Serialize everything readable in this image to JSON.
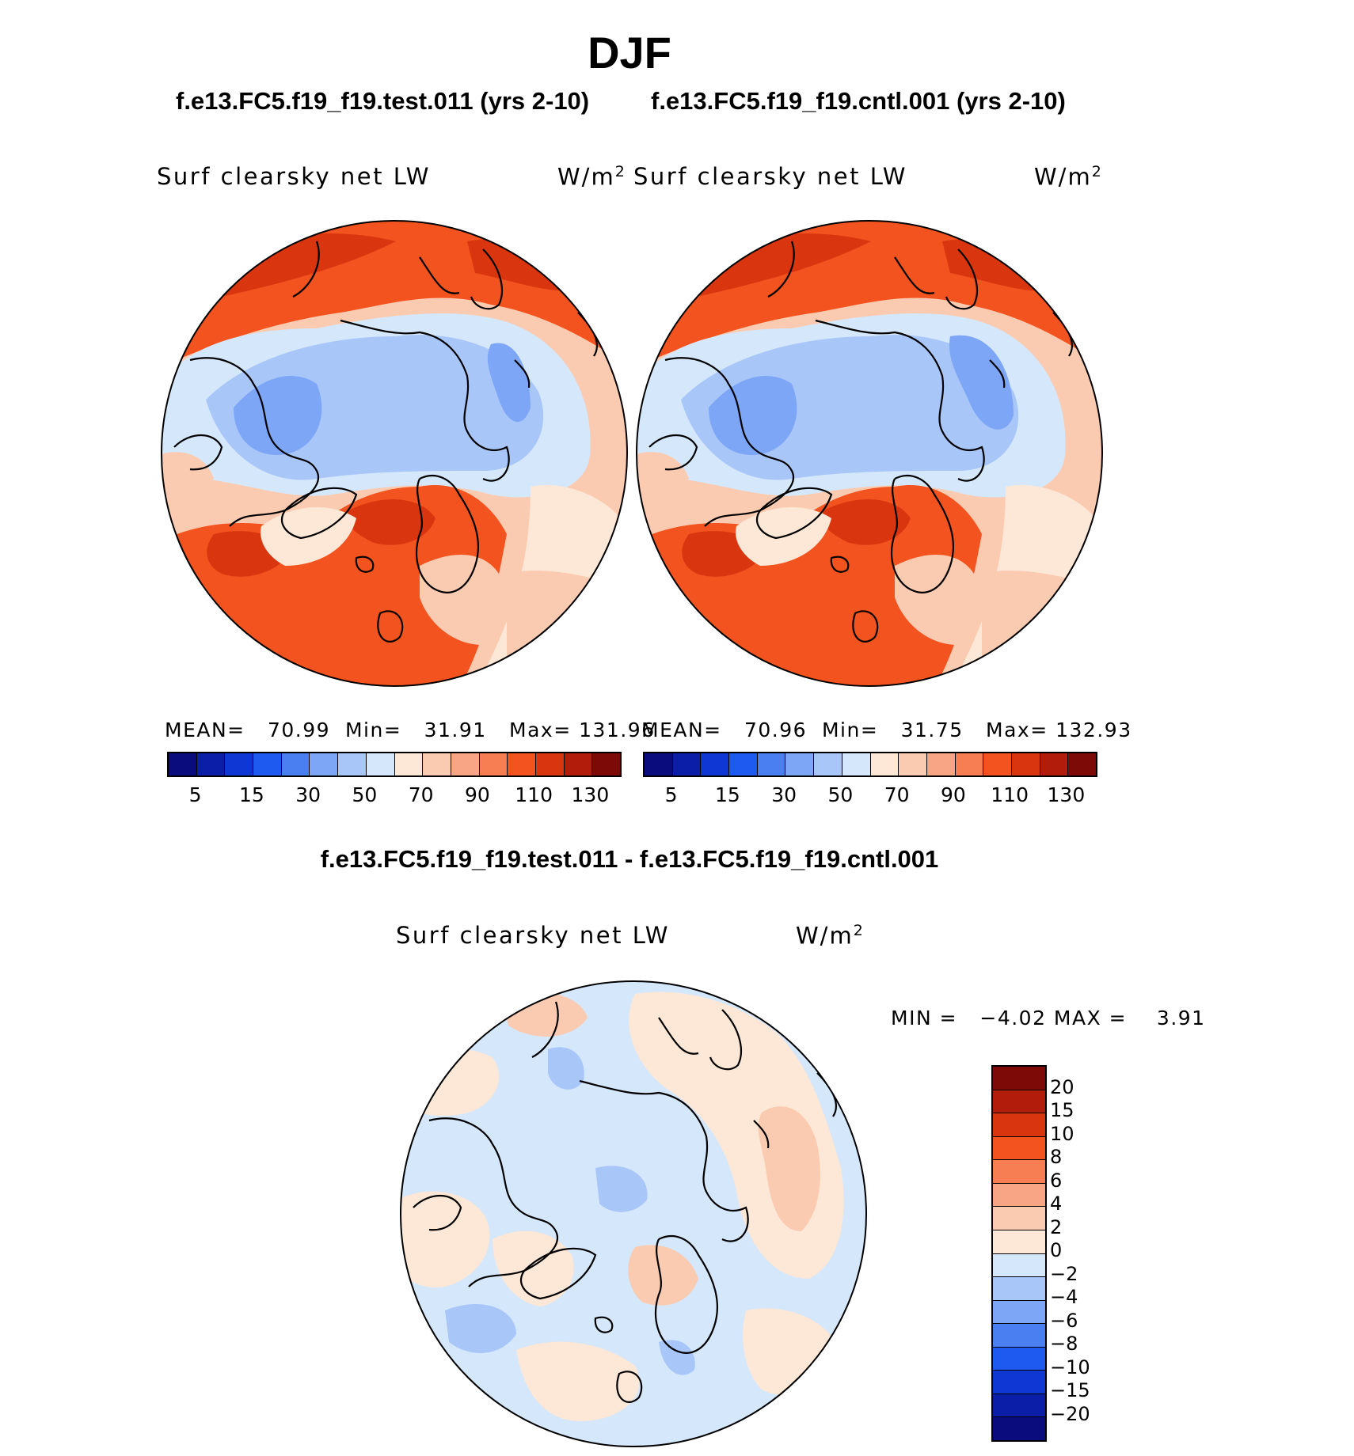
{
  "title": "DJF",
  "panels": [
    {
      "case_title": "f.e13.FC5.f19_f19.test.011 (yrs 2-10)",
      "variable_label": "Surf clearsky net LW",
      "units": "W/m",
      "units_exp": "2",
      "stats": {
        "mean_label": "MEAN=",
        "mean": "70.99",
        "min_label": "Min=",
        "min": "31.91",
        "max_label": "Max=",
        "max": "131.96"
      }
    },
    {
      "case_title": "f.e13.FC5.f19_f19.cntl.001 (yrs 2-10)",
      "variable_label": "Surf clearsky net LW",
      "units": "W/m",
      "units_exp": "2",
      "stats": {
        "mean_label": "MEAN=",
        "mean": "70.96",
        "min_label": "Min=",
        "min": "31.75",
        "max_label": "Max=",
        "max": "132.93"
      }
    }
  ],
  "colorbar": {
    "tick_labels": [
      "5",
      "15",
      "30",
      "50",
      "70",
      "90",
      "110",
      "130"
    ],
    "colors": [
      "#0a0b7d",
      "#0b1ea8",
      "#0f37d3",
      "#1f5af0",
      "#4a7ff2",
      "#7ea6f6",
      "#a9c6f9",
      "#d5e7fb",
      "#fde7d6",
      "#fbcbb1",
      "#f8a585",
      "#f67e52",
      "#f2531f",
      "#d93610",
      "#b21c0b",
      "#7e0a08"
    ]
  },
  "difference": {
    "title": "f.e13.FC5.f19_f19.test.011 - f.e13.FC5.f19_f19.cntl.001",
    "variable_label": "Surf clearsky net LW",
    "units": "W/m",
    "units_exp": "2",
    "stats": "MIN =   −4.02 MAX =    3.91",
    "colorbar": {
      "tick_labels": [
        "20",
        "15",
        "10",
        "8",
        "6",
        "4",
        "2",
        "0",
        "−2",
        "−4",
        "−6",
        "−8",
        "−10",
        "−15",
        "−20"
      ],
      "colors": [
        "#7e0a08",
        "#b21c0b",
        "#d93610",
        "#f2531f",
        "#f67e52",
        "#f8a585",
        "#fbcbb1",
        "#fde7d6",
        "#d5e7fb",
        "#a9c6f9",
        "#7ea6f6",
        "#4a7ff2",
        "#1f5af0",
        "#0f37d3",
        "#0b1ea8",
        "#0a0b7d"
      ]
    }
  },
  "map_colors": {
    "deep_red": "#b21c0b",
    "red": "#d93610",
    "orange_red": "#f2531f",
    "orange": "#f67e52",
    "salmon": "#f8a585",
    "light_salmon": "#fbcbb1",
    "peach": "#fde7d6",
    "pale_blue": "#d5e7fb",
    "light_blue": "#a9c6f9",
    "blue": "#7ea6f6",
    "mid_blue": "#4a7ff2"
  }
}
